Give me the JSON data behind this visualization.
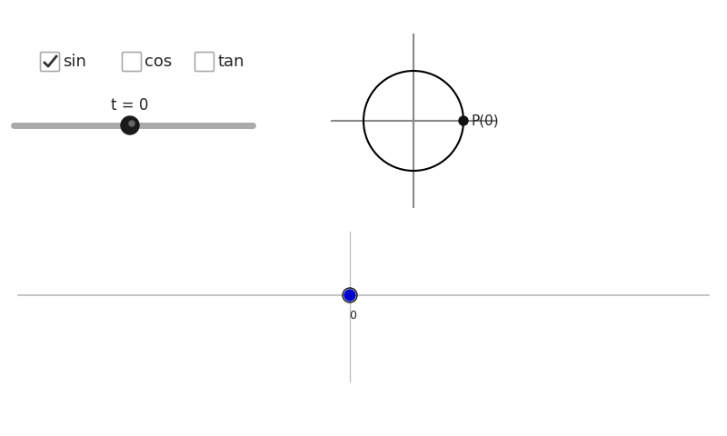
{
  "bg_color": "#ffffff",
  "checkbox_labels": [
    "sin",
    "cos",
    "tan"
  ],
  "checkbox_sin_checked": true,
  "slider_label": "t = 0",
  "slider_color": "#aaaaaa",
  "slider_knob_color": "#1a1a1a",
  "circle_color": "#000000",
  "axis_color": "#888888",
  "point_color": "#111111",
  "point_label": "P(0)",
  "graph_dot_color": "#0000cc",
  "graph_dot_outline": "#111111",
  "graph_axis_color": "#bbbbbb"
}
